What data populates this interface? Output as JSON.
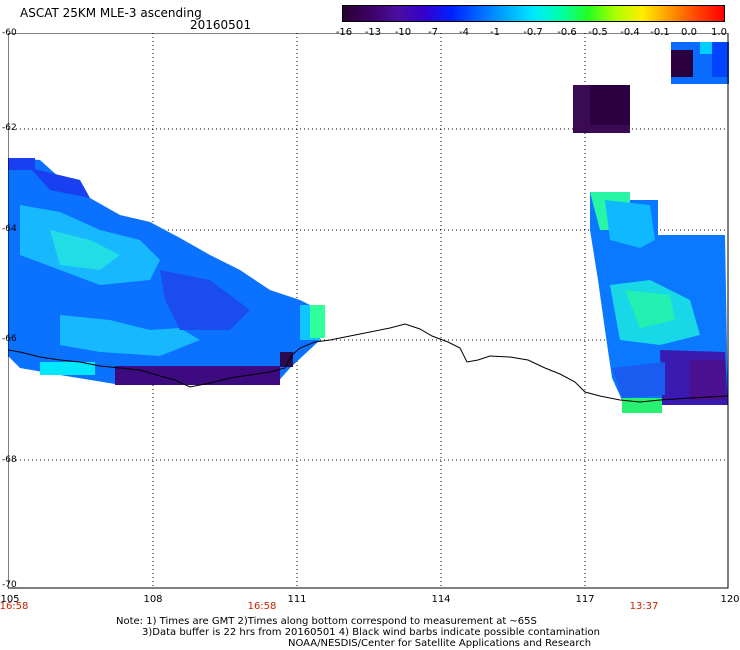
{
  "header": {
    "title": "ASCAT 25KM MLE-3 ascending",
    "date": "20160501"
  },
  "colorbar": {
    "ticks": [
      "-16",
      "-13",
      "-10",
      "-7",
      "-4",
      "-1",
      "-0.7",
      "-0.6",
      "-0.5",
      "-0.4",
      "-0.1",
      "0.0",
      "1.0"
    ],
    "colors": [
      "#2a0033",
      "#3d0066",
      "#4a0fa0",
      "#3300cc",
      "#0022ff",
      "#0066ff",
      "#00aaff",
      "#00e8ff",
      "#00ffaa",
      "#22ff22",
      "#aaff00",
      "#ffee00",
      "#ff9900",
      "#ff4400",
      "#ff0000"
    ]
  },
  "map": {
    "lat_labels": [
      "-60",
      "-62",
      "-64",
      "-66",
      "-68",
      "-70"
    ],
    "lon_labels": [
      "105",
      "108",
      "111",
      "114",
      "117",
      "120"
    ],
    "time_labels": [
      "16:58",
      "16:58",
      "13:37"
    ]
  },
  "footer": {
    "note_line1": "Note: 1) Times are GMT 2)Times along bottom correspond to measurement at ~65S",
    "note_line2": "3)Data buffer is 22 hrs from 20160501 4) Black wind barbs indicate possible contamination",
    "note_line3": "NOAA/NESDIS/Center for Satellite Applications and Research"
  }
}
